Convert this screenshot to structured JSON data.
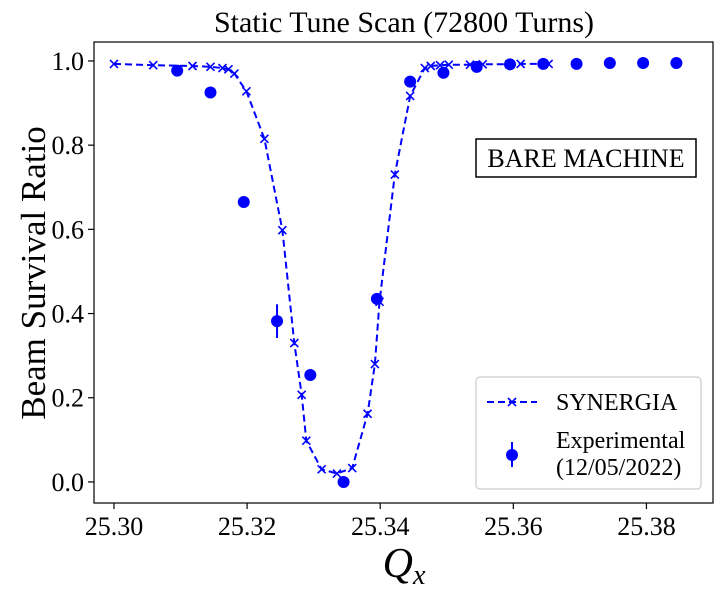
{
  "chart_data": {
    "type": "scatter",
    "title": "Static Tune Scan (72800 Turns)",
    "xlabel": "Q",
    "xlabel_subscript": "x",
    "ylabel": "Beam Survival Ratio",
    "xlim": [
      25.297,
      25.39
    ],
    "ylim": [
      -0.05,
      1.045
    ],
    "xticks": [
      25.3,
      25.32,
      25.34,
      25.36,
      25.38
    ],
    "xtick_labels": [
      "25.30",
      "25.32",
      "25.34",
      "25.36",
      "25.38"
    ],
    "yticks": [
      0.0,
      0.2,
      0.4,
      0.6,
      0.8,
      1.0
    ],
    "ytick_labels": [
      "0.0",
      "0.2",
      "0.4",
      "0.6",
      "0.8",
      "1.0"
    ],
    "grid": false,
    "annotation": "BARE MACHINE",
    "legend_position": "bottom-right",
    "series": [
      {
        "name": "SYNERGIA",
        "style": "dashed-line-x-markers",
        "color": "#0000ff",
        "x": [
          25.3,
          25.3059,
          25.3118,
          25.3145,
          25.3163,
          25.3172,
          25.3181,
          25.3199,
          25.3226,
          25.3253,
          25.3271,
          25.3282,
          25.3289,
          25.3312,
          25.3335,
          25.3358,
          25.3381,
          25.3392,
          25.3399,
          25.3422,
          25.3445,
          25.3467,
          25.3476,
          25.349,
          25.3503,
          25.3535,
          25.3554,
          25.3594,
          25.3611,
          25.3653
        ],
        "y": [
          0.993,
          0.99,
          0.988,
          0.986,
          0.983,
          0.98,
          0.97,
          0.928,
          0.815,
          0.598,
          0.33,
          0.207,
          0.098,
          0.03,
          0.02,
          0.033,
          0.162,
          0.28,
          0.428,
          0.73,
          0.917,
          0.983,
          0.988,
          0.99,
          0.991,
          0.991,
          0.992,
          0.992,
          0.993,
          0.993
        ]
      },
      {
        "name": "Experimental",
        "name_line2": "(12/05/2022)",
        "style": "points-with-error-bars",
        "color": "#0000ff",
        "x": [
          25.3095,
          25.3145,
          25.3195,
          25.3245,
          25.3295,
          25.3345,
          25.3395,
          25.3445,
          25.3495,
          25.3545,
          25.3595,
          25.3645,
          25.3695,
          25.3745,
          25.3795,
          25.3845
        ],
        "y": [
          0.977,
          0.925,
          0.665,
          0.382,
          0.254,
          0.0,
          0.435,
          0.951,
          0.972,
          0.986,
          0.992,
          0.993,
          0.993,
          0.995,
          0.995,
          0.995
        ],
        "yerr": [
          0.003,
          0.003,
          0.004,
          0.04,
          0.007,
          0.003,
          0.008,
          0.004,
          0.003,
          0.002,
          0.002,
          0.002,
          0.002,
          0.002,
          0.002,
          0.002
        ]
      }
    ]
  }
}
